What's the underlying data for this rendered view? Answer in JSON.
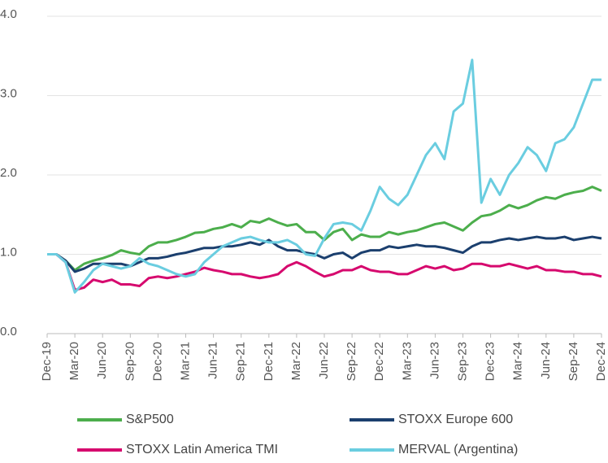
{
  "chart_data": {
    "type": "line",
    "categories": [
      "Dec-19",
      null,
      null,
      "Mar-20",
      null,
      null,
      "Jun-20",
      null,
      null,
      "Sep-20",
      null,
      null,
      "Dec-20",
      null,
      null,
      "Mar-21",
      null,
      null,
      "Jun-21",
      null,
      null,
      "Sep-21",
      null,
      null,
      "Dec-21",
      null,
      null,
      "Mar-22",
      null,
      null,
      "Jun-22",
      null,
      null,
      "Sep-22",
      null,
      null,
      "Dec-22",
      null,
      null,
      "Mar-23",
      null,
      null,
      "Jun-23",
      null,
      null,
      "Sep-23",
      null,
      null,
      "Dec-23",
      null,
      null,
      "Mar-24",
      null,
      null,
      "Jun-24",
      null,
      null,
      "Sep-24",
      null,
      null,
      "Dec-24"
    ],
    "series": [
      {
        "name": "S&P500",
        "color": "#4cae4c",
        "values": [
          1.0,
          1.0,
          0.92,
          0.8,
          0.88,
          0.92,
          0.95,
          0.99,
          1.05,
          1.02,
          1.0,
          1.1,
          1.15,
          1.15,
          1.18,
          1.22,
          1.27,
          1.28,
          1.32,
          1.34,
          1.38,
          1.34,
          1.42,
          1.4,
          1.45,
          1.4,
          1.36,
          1.38,
          1.28,
          1.28,
          1.18,
          1.28,
          1.32,
          1.18,
          1.25,
          1.22,
          1.22,
          1.28,
          1.25,
          1.28,
          1.3,
          1.34,
          1.38,
          1.4,
          1.35,
          1.3,
          1.4,
          1.48,
          1.5,
          1.55,
          1.62,
          1.58,
          1.62,
          1.68,
          1.72,
          1.7,
          1.75,
          1.78,
          1.8,
          1.85,
          1.8
        ]
      },
      {
        "name": "STOXX Europe 600",
        "color": "#1b3f6e",
        "values": [
          1.0,
          1.0,
          0.92,
          0.78,
          0.82,
          0.88,
          0.88,
          0.88,
          0.88,
          0.85,
          0.9,
          0.95,
          0.95,
          0.97,
          1.0,
          1.02,
          1.05,
          1.08,
          1.08,
          1.1,
          1.1,
          1.12,
          1.15,
          1.12,
          1.18,
          1.1,
          1.05,
          1.05,
          1.02,
          1.0,
          0.95,
          1.0,
          1.02,
          0.95,
          1.02,
          1.05,
          1.05,
          1.1,
          1.08,
          1.1,
          1.12,
          1.1,
          1.1,
          1.08,
          1.05,
          1.02,
          1.1,
          1.15,
          1.15,
          1.18,
          1.2,
          1.18,
          1.2,
          1.22,
          1.2,
          1.2,
          1.22,
          1.18,
          1.2,
          1.22,
          1.2
        ]
      },
      {
        "name": "STOXX Latin America TMI",
        "color": "#d6096e",
        "values": [
          1.0,
          1.0,
          0.9,
          0.55,
          0.58,
          0.68,
          0.65,
          0.68,
          0.62,
          0.62,
          0.6,
          0.7,
          0.72,
          0.7,
          0.72,
          0.75,
          0.78,
          0.83,
          0.8,
          0.78,
          0.75,
          0.75,
          0.72,
          0.7,
          0.72,
          0.75,
          0.85,
          0.9,
          0.85,
          0.78,
          0.72,
          0.75,
          0.8,
          0.8,
          0.85,
          0.8,
          0.78,
          0.78,
          0.75,
          0.75,
          0.8,
          0.85,
          0.82,
          0.85,
          0.8,
          0.82,
          0.88,
          0.88,
          0.85,
          0.85,
          0.88,
          0.85,
          0.82,
          0.85,
          0.8,
          0.8,
          0.78,
          0.78,
          0.75,
          0.75,
          0.72
        ]
      },
      {
        "name": "MERVAL (Argentina)",
        "color": "#6acde0",
        "values": [
          1.0,
          1.0,
          0.9,
          0.52,
          0.65,
          0.8,
          0.88,
          0.85,
          0.82,
          0.85,
          0.95,
          0.88,
          0.85,
          0.8,
          0.75,
          0.72,
          0.75,
          0.9,
          1.0,
          1.1,
          1.15,
          1.2,
          1.22,
          1.18,
          1.15,
          1.15,
          1.18,
          1.12,
          1.0,
          0.98,
          1.2,
          1.38,
          1.4,
          1.38,
          1.3,
          1.55,
          1.85,
          1.7,
          1.62,
          1.75,
          2.0,
          2.25,
          2.4,
          2.2,
          2.8,
          2.9,
          3.45,
          1.65,
          1.95,
          1.75,
          2.0,
          2.15,
          2.35,
          2.25,
          2.05,
          2.4,
          2.45,
          2.6,
          2.9,
          3.2,
          3.2
        ]
      }
    ],
    "ylim": [
      0,
      4
    ],
    "yticks": [
      {
        "value": 0,
        "label": "0.0"
      },
      {
        "value": 1,
        "label": "1.0"
      },
      {
        "value": 2,
        "label": "2.0"
      },
      {
        "value": 3,
        "label": "3.0"
      },
      {
        "value": 4,
        "label": "4.0"
      }
    ],
    "grid": true,
    "legend": "bottom"
  }
}
